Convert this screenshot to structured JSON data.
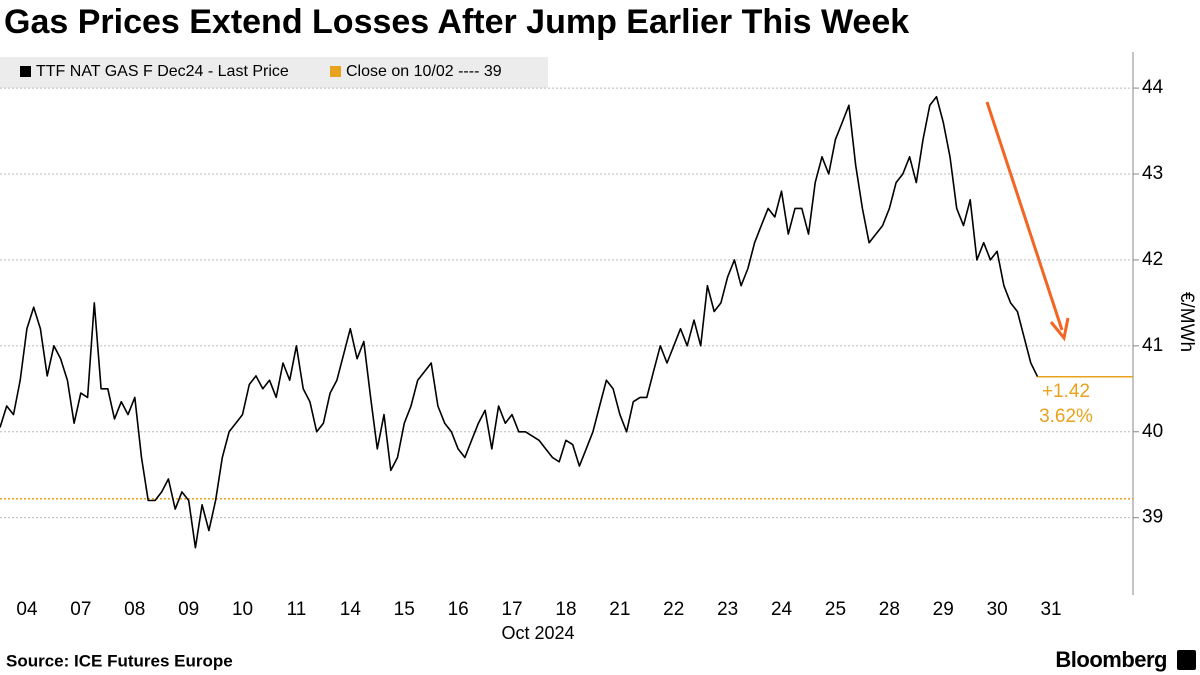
{
  "chart_data": {
    "type": "line",
    "title": "Gas Prices Extend Losses After Jump Earlier This Week",
    "y_label": "€/MWh",
    "x_label": "Oct 2024",
    "source": "Source: ICE Futures Europe",
    "brand": "Bloomberg",
    "categories": [
      "04",
      "07",
      "08",
      "09",
      "10",
      "11",
      "14",
      "15",
      "16",
      "17",
      "18",
      "21",
      "22",
      "23",
      "24",
      "25",
      "28",
      "29",
      "30",
      "31"
    ],
    "series": [
      {
        "name": "TTF NAT GAS F Dec24 - Last Price",
        "color": "#000000",
        "values": [
          [
            40.05,
            40.3,
            40.2,
            40.6,
            41.2,
            41.45,
            41.2,
            40.65
          ],
          [
            41.0,
            40.85,
            40.6,
            40.1,
            40.45,
            40.4,
            41.5,
            40.5
          ],
          [
            40.5,
            40.15,
            40.35,
            40.2,
            40.4,
            39.7,
            39.2,
            39.2
          ],
          [
            39.3,
            39.45,
            39.1,
            39.3,
            39.2,
            38.65,
            39.15,
            38.85
          ],
          [
            39.2,
            39.7,
            40.0,
            40.1,
            40.2,
            40.55,
            40.65,
            40.5
          ],
          [
            40.6,
            40.4,
            40.8,
            40.6,
            41.0,
            40.5,
            40.35,
            40.0
          ],
          [
            40.1,
            40.45,
            40.6,
            40.9,
            41.2,
            40.85,
            41.05,
            40.4
          ],
          [
            39.8,
            40.2,
            39.55,
            39.7,
            40.1,
            40.3,
            40.6,
            40.7
          ],
          [
            40.8,
            40.3,
            40.1,
            40.0,
            39.8,
            39.7,
            39.9,
            40.1
          ],
          [
            40.25,
            39.8,
            40.3,
            40.1,
            40.2,
            40.0,
            40.0,
            39.95
          ],
          [
            39.9,
            39.8,
            39.7,
            39.65,
            39.9,
            39.85,
            39.6,
            39.8
          ],
          [
            40.0,
            40.3,
            40.6,
            40.5,
            40.2,
            40.0,
            40.35,
            40.4
          ],
          [
            40.4,
            40.7,
            41.0,
            40.8,
            41.0,
            41.2,
            41.0,
            41.3
          ],
          [
            41.0,
            41.7,
            41.4,
            41.5,
            41.8,
            42.0,
            41.7,
            41.9
          ],
          [
            42.2,
            42.4,
            42.6,
            42.5,
            42.8,
            42.3,
            42.6,
            42.6
          ],
          [
            42.3,
            42.9,
            43.2,
            43.0,
            43.4,
            43.6,
            43.8,
            43.1
          ],
          [
            42.6,
            42.2,
            42.3,
            42.4,
            42.6,
            42.9,
            43.0,
            43.2
          ],
          [
            42.9,
            43.4,
            43.8,
            43.9,
            43.6,
            43.2,
            42.6,
            42.4
          ],
          [
            42.7,
            42.0,
            42.2,
            42.0,
            42.1,
            41.7,
            41.5,
            41.4
          ],
          [
            41.1,
            40.8,
            40.64
          ]
        ]
      }
    ],
    "reference": {
      "name": "Close on 10/02 ---- 39",
      "value": 39.22,
      "color": "#e8a21c"
    },
    "annotations": [
      "+1.42",
      "3.62%"
    ],
    "annotation_color": "#e8a21c",
    "ylim": [
      38.1,
      44.42
    ],
    "yticks": [
      39,
      40,
      41,
      42,
      43,
      44
    ],
    "grid": true
  }
}
